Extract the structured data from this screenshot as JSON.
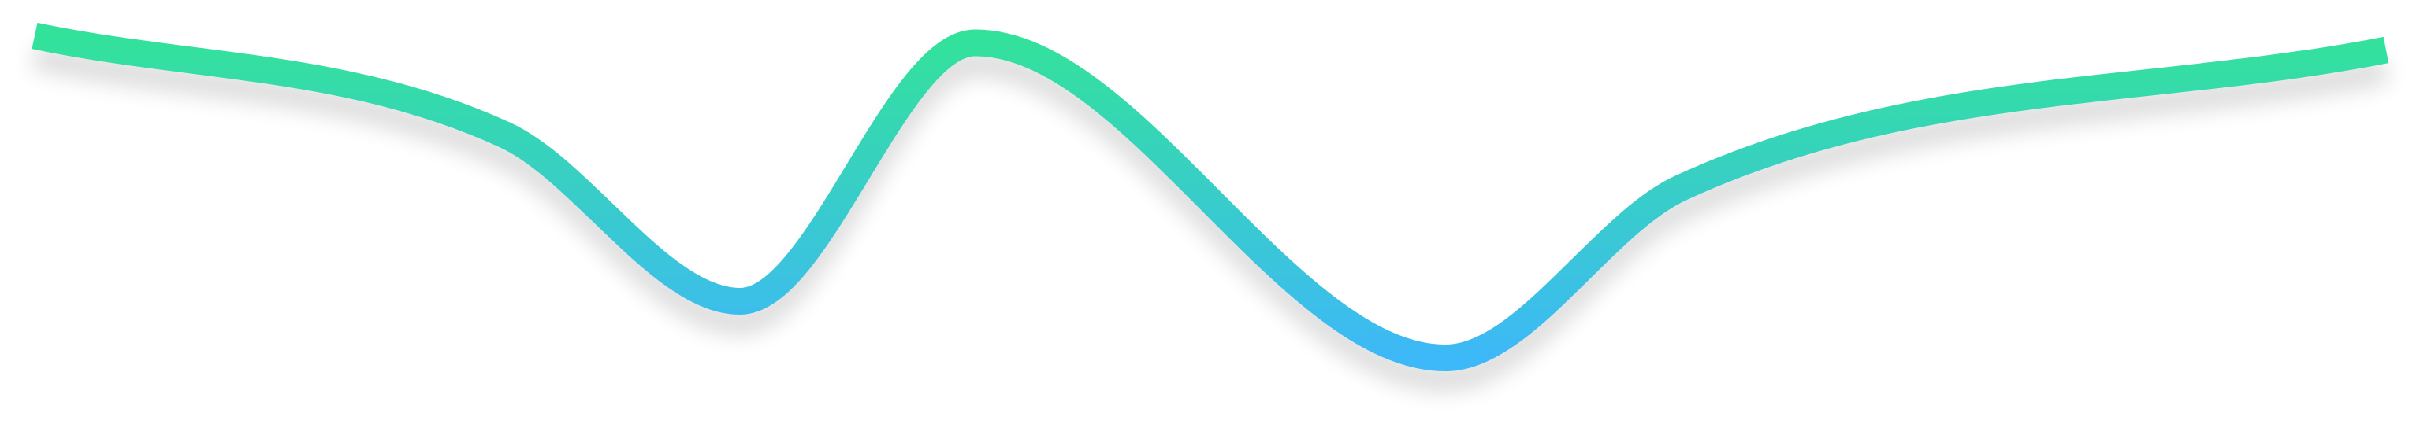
{
  "chart_data": {
    "type": "line",
    "title": "",
    "xlabel": "",
    "ylabel": "",
    "grid": false,
    "legend": "none",
    "xlim": [
      0,
      30
    ],
    "ylim": [
      0,
      100
    ],
    "series": [
      {
        "x": [
          0,
          6,
          9,
          12,
          18,
          21,
          30
        ],
        "values": [
          97,
          69,
          22,
          95,
          6,
          54,
          93
        ]
      }
    ],
    "colors": {
      "gradient_top": "#33e29a",
      "gradient_bottom": "#3db8f8",
      "shadow": "#000000"
    }
  }
}
